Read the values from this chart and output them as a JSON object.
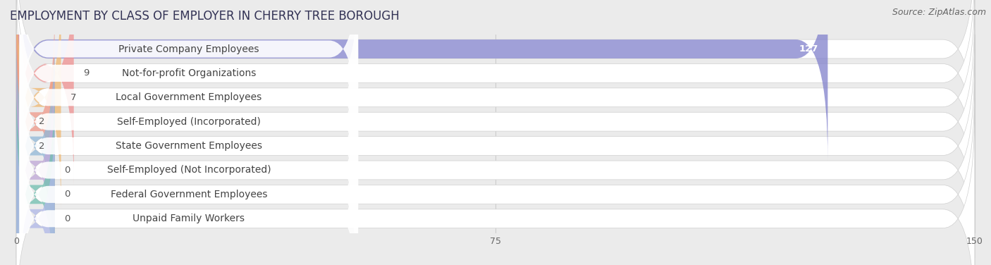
{
  "title": "EMPLOYMENT BY CLASS OF EMPLOYER IN CHERRY TREE BOROUGH",
  "source": "Source: ZipAtlas.com",
  "categories": [
    "Private Company Employees",
    "Not-for-profit Organizations",
    "Local Government Employees",
    "Self-Employed (Incorporated)",
    "State Government Employees",
    "Self-Employed (Not Incorporated)",
    "Federal Government Employees",
    "Unpaid Family Workers"
  ],
  "values": [
    127,
    9,
    7,
    2,
    2,
    0,
    0,
    0
  ],
  "bar_colors": [
    "#8080cc",
    "#f09090",
    "#f0b870",
    "#f09888",
    "#90b8d8",
    "#c0a8d8",
    "#70c0b0",
    "#b0b8e8"
  ],
  "xlim": [
    0,
    150
  ],
  "xticks": [
    0,
    75,
    150
  ],
  "background_color": "#ebebeb",
  "row_bg_color": "#ffffff",
  "title_fontsize": 12,
  "label_fontsize": 10,
  "value_fontsize": 9.5,
  "source_fontsize": 9
}
